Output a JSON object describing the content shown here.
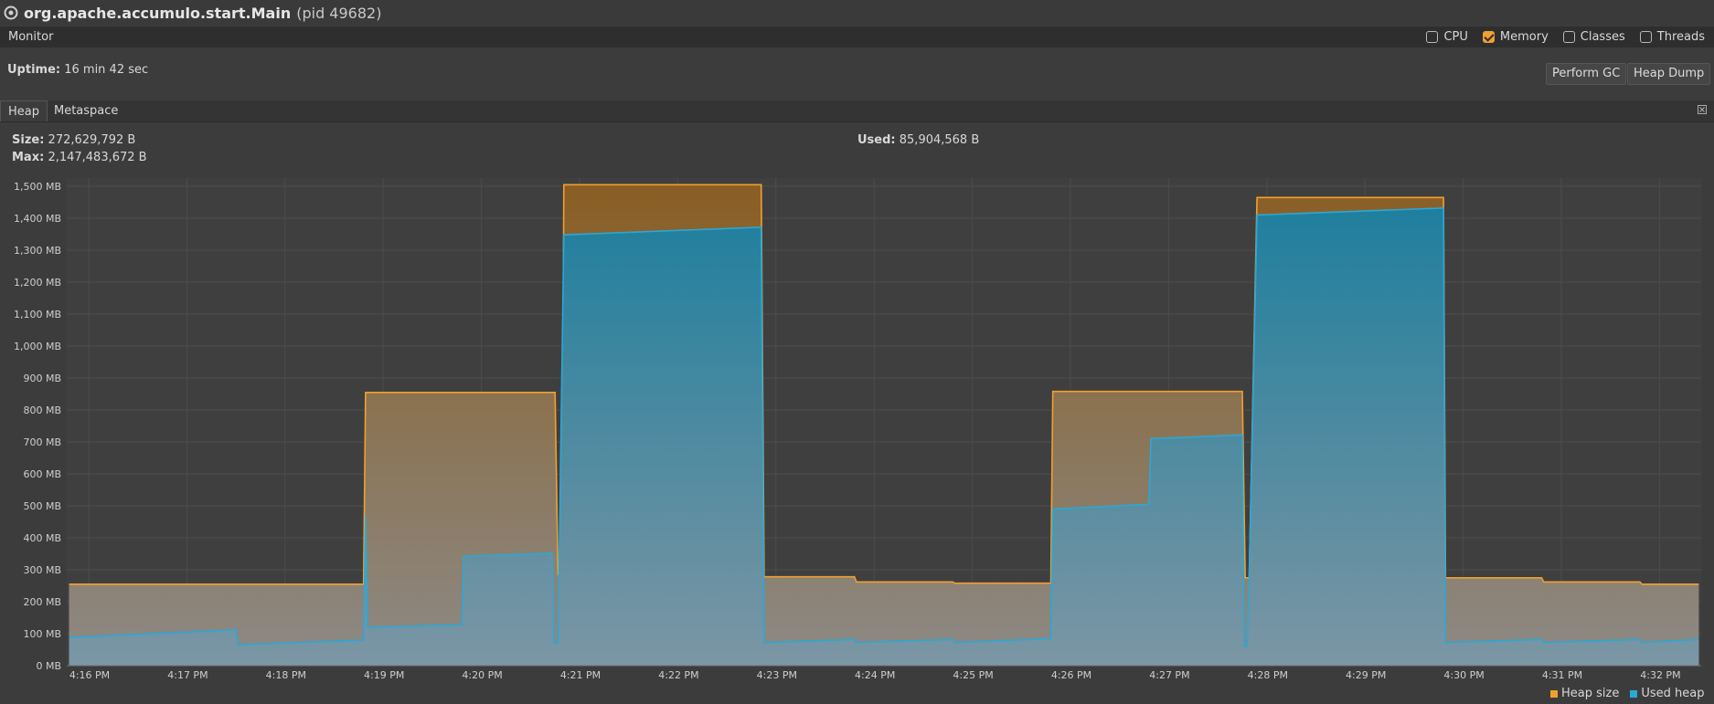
{
  "window": {
    "title": "org.apache.accumulo.start.Main",
    "pid": "(pid 49682)"
  },
  "monitor": {
    "label": "Monitor",
    "checkboxes": [
      {
        "label": "CPU",
        "checked": false
      },
      {
        "label": "Memory",
        "checked": true
      },
      {
        "label": "Classes",
        "checked": false
      },
      {
        "label": "Threads",
        "checked": false
      }
    ],
    "uptime_label": "Uptime:",
    "uptime_value": "16 min 42 sec",
    "perform_gc": "Perform GC",
    "heap_dump": "Heap Dump"
  },
  "tabs": [
    {
      "label": "Heap",
      "active": true
    },
    {
      "label": "Metaspace",
      "active": false
    }
  ],
  "heap": {
    "size_label": "Size:",
    "size_value": "272,629,792 B",
    "max_label": "Max:",
    "max_value": "2,147,483,672 B",
    "used_label": "Used:",
    "used_value": "85,904,568 B"
  },
  "colors": {
    "heap_size": "#f0a030",
    "used_heap": "#2ba8d6"
  },
  "chart_data": {
    "type": "area",
    "ylim": [
      0,
      1500
    ],
    "yticks": [
      "0 MB",
      "100 MB",
      "200 MB",
      "300 MB",
      "400 MB",
      "500 MB",
      "600 MB",
      "700 MB",
      "800 MB",
      "900 MB",
      "1,000 MB",
      "1,100 MB",
      "1,200 MB",
      "1,300 MB",
      "1,400 MB",
      "1,500 MB"
    ],
    "xticks": [
      "4:16 PM",
      "4:17 PM",
      "4:18 PM",
      "4:19 PM",
      "4:20 PM",
      "4:21 PM",
      "4:22 PM",
      "4:23 PM",
      "4:24 PM",
      "4:25 PM",
      "4:26 PM",
      "4:27 PM",
      "4:28 PM",
      "4:29 PM",
      "4:30 PM",
      "4:31 PM",
      "4:32 PM"
    ],
    "grid": true,
    "legend": "bottom-right",
    "series": [
      {
        "name": "Heap size",
        "points": [
          [
            -0.2,
            255
          ],
          [
            2.8,
            255
          ],
          [
            2.82,
            855
          ],
          [
            4.75,
            855
          ],
          [
            4.78,
            285
          ],
          [
            4.82,
            285
          ],
          [
            4.84,
            1505
          ],
          [
            6.85,
            1505
          ],
          [
            6.88,
            278
          ],
          [
            7.8,
            278
          ],
          [
            7.82,
            262
          ],
          [
            8.8,
            262
          ],
          [
            8.82,
            258
          ],
          [
            9.8,
            258
          ],
          [
            9.82,
            858
          ],
          [
            11.75,
            858
          ],
          [
            11.78,
            275
          ],
          [
            11.82,
            275
          ],
          [
            11.9,
            1465
          ],
          [
            13.8,
            1465
          ],
          [
            13.82,
            275
          ],
          [
            14.8,
            275
          ],
          [
            14.82,
            262
          ],
          [
            15.8,
            262
          ],
          [
            15.82,
            255
          ],
          [
            16.4,
            255
          ]
        ]
      },
      {
        "name": "Used heap",
        "points": [
          [
            -0.2,
            88
          ],
          [
            1.5,
            112
          ],
          [
            1.52,
            65
          ],
          [
            2.8,
            80
          ],
          [
            2.82,
            470
          ],
          [
            2.84,
            120
          ],
          [
            3.8,
            128
          ],
          [
            3.82,
            342
          ],
          [
            4.72,
            352
          ],
          [
            4.74,
            70
          ],
          [
            4.78,
            70
          ],
          [
            4.84,
            1348
          ],
          [
            6.85,
            1372
          ],
          [
            6.88,
            72
          ],
          [
            7.8,
            82
          ],
          [
            7.82,
            72
          ],
          [
            8.8,
            82
          ],
          [
            8.82,
            72
          ],
          [
            9.8,
            85
          ],
          [
            9.82,
            490
          ],
          [
            10.8,
            505
          ],
          [
            10.82,
            710
          ],
          [
            11.75,
            722
          ],
          [
            11.77,
            60
          ],
          [
            11.8,
            60
          ],
          [
            11.82,
            280
          ],
          [
            11.9,
            1410
          ],
          [
            13.8,
            1432
          ],
          [
            13.82,
            72
          ],
          [
            14.8,
            82
          ],
          [
            14.82,
            72
          ],
          [
            15.8,
            82
          ],
          [
            15.82,
            72
          ],
          [
            16.4,
            82
          ]
        ]
      }
    ]
  }
}
